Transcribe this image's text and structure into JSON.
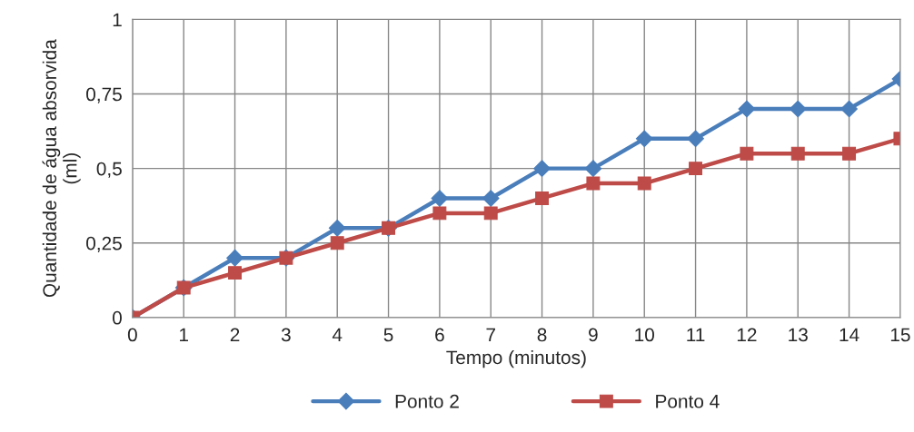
{
  "chart_data": {
    "type": "line",
    "xlabel": "Tempo (minutos)",
    "ylabel": "Quantidade de água absorvida\n(ml)",
    "x": [
      0,
      1,
      2,
      3,
      4,
      5,
      6,
      7,
      8,
      9,
      10,
      11,
      12,
      13,
      14,
      15
    ],
    "series": [
      {
        "name": "Ponto 2",
        "color": "#4a7ebb",
        "marker": "diamond",
        "values": [
          0,
          0.1,
          0.2,
          0.2,
          0.3,
          0.3,
          0.4,
          0.4,
          0.5,
          0.5,
          0.6,
          0.6,
          0.7,
          0.7,
          0.7,
          0.8
        ]
      },
      {
        "name": "Ponto 4",
        "color": "#be4b48",
        "marker": "square",
        "values": [
          0,
          0.1,
          0.15,
          0.2,
          0.25,
          0.3,
          0.35,
          0.35,
          0.4,
          0.45,
          0.45,
          0.5,
          0.55,
          0.55,
          0.55,
          0.6
        ]
      }
    ],
    "xlim": [
      0,
      15
    ],
    "xticks": [
      0,
      1,
      2,
      3,
      4,
      5,
      6,
      7,
      8,
      9,
      10,
      11,
      12,
      13,
      14,
      15
    ],
    "ylim": [
      0,
      1
    ],
    "yticks": [
      0,
      {
        "value": 0.25,
        "label": "0,25"
      },
      {
        "value": 0.5,
        "label": "0,5"
      },
      {
        "value": 0.75,
        "label": "0,75"
      },
      1
    ],
    "grid": true,
    "legend": "bottom",
    "line_style": "solid"
  }
}
